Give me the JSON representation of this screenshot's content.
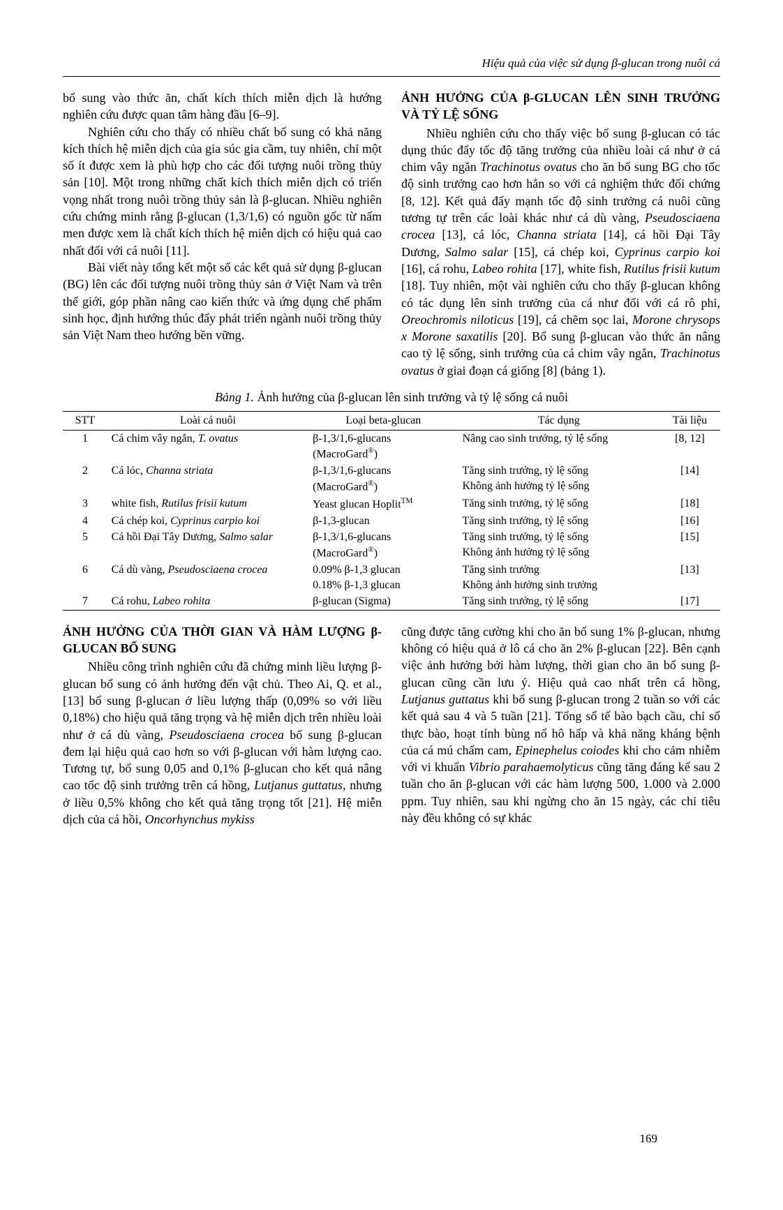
{
  "header": {
    "running_title": "Hiệu quả của việc sử dụng β-glucan trong nuôi cá"
  },
  "upper_left_col": {
    "p1": "bổ sung vào thức ăn, chất kích thích miễn dịch là hướng nghiên cứu được quan tâm hàng đầu [6–9].",
    "p2": "Nghiên cứu cho thấy có nhiều chất bổ sung có khả năng kích thích hệ miễn dịch của gia súc gia cầm, tuy nhiên, chỉ một số ít được xem là phù hợp cho các đối tượng nuôi trồng thủy sản [10]. Một trong những chất kích thích miễn dịch có triển vọng nhất trong nuôi trồng thủy sản là β-glucan. Nhiều nghiên cứu chứng minh rằng β-glucan (1,3/1,6) có nguồn gốc từ nấm men được xem là chất kích thích hệ miễn dịch có hiệu quả cao nhất đối với cá nuôi [11].",
    "p3": "Bài viết này tổng kết một số các kết quả sử dụng β-glucan (BG) lên các đối tượng nuôi trồng thủy sản ở Việt Nam và trên thế giới, góp phần nâng cao kiến thức và ứng dụng chế phẩm sinh học, định hướng thúc đẩy phát triển ngành nuôi trồng thủy sản Việt Nam theo hướng bền vững."
  },
  "upper_right_col": {
    "heading": "ẢNH HƯỞNG CỦA β-GLUCAN LÊN SINH TRƯỞNG VÀ TỶ LỆ SỐNG",
    "p1_a": "Nhiều nghiên cứu cho thấy việc bổ sung β-glucan có tác dụng thúc đẩy tốc độ tăng trưởng của nhiều loài cá như ở cá chim vây ngắn ",
    "p1_b": "Trachinotus ovatus",
    "p1_c": " cho ăn bổ sung BG cho tốc độ sinh trưởng cao hơn hẳn so với cá nghiệm thức đối chứng [8, 12]. Kết quả đẩy mạnh tốc độ sinh trưởng cá nuôi cũng tương tự trên các loài khác như cá dù vàng, ",
    "p1_d": "Pseudosciaena crocea",
    "p1_e": " [13], cá lóc, ",
    "p1_f": "Channa striata",
    "p1_g": " [14], cá hồi Đại Tây Dương, ",
    "p1_h": "Salmo salar",
    "p1_i": " [15], cá chép koi, ",
    "p1_j": "Cyprinus carpio koi",
    "p1_k": " [16], cá rohu, ",
    "p1_l": "Labeo rohita",
    "p1_m": " [17], white fish, ",
    "p1_n": "Rutilus frisii kutum",
    "p1_o": " [18]. Tuy nhiên, một vài nghiên cứu cho thấy β-glucan không có tác dụng lên sinh trưởng của cá như đối với cá rô phi, ",
    "p1_p": "Oreochromis niloticus",
    "p1_q": " [19], cá chẽm sọc lai, ",
    "p1_r": "Morone chrysops x Morone saxatilis",
    "p1_s": " [20]. Bổ sung β-glucan vào thức ăn nâng cao tỷ lệ sống, sinh trưởng của cá chim vây ngắn, ",
    "p1_t": "Trachinotus ovatus",
    "p1_u": " ở giai đoạn cá giống [8] (bảng 1)."
  },
  "table": {
    "caption_italic": "Bảng 1.",
    "caption_rest": " Ảnh hưởng của β-glucan lên sinh trưởng và tỷ lệ sống cá nuôi",
    "columns": [
      "STT",
      "Loài cá nuôi",
      "Loại beta-glucan",
      "Tác dụng",
      "Tài liệu"
    ],
    "rows": [
      {
        "stt": "1",
        "species_a": "Cá chim vây ngắn, ",
        "species_i": "T. ovatus",
        "glucan_a": "β-1,3/1,6-glucans",
        "glucan_b": "(MacroGard",
        "glucan_sup": "®",
        "glucan_c": ")",
        "effect_a": "Nâng cao sinh trưởng, tỷ lệ sống",
        "effect_b": "",
        "ref": "[8, 12]"
      },
      {
        "stt": "2",
        "species_a": "Cá lóc, ",
        "species_i": "Channa striata",
        "glucan_a": "β-1,3/1,6-glucans",
        "glucan_b": "(MacroGard",
        "glucan_sup": "®",
        "glucan_c": ")",
        "effect_a": "Tăng sinh trưởng, tỷ lệ sống",
        "effect_b": "Không ảnh hưởng tỷ lệ sống",
        "ref": "[14]"
      },
      {
        "stt": "3",
        "species_a": "white fish, ",
        "species_i": "Rutilus frisii kutum",
        "glucan_a": "Yeast glucan Hoplit",
        "glucan_sup": "TM",
        "glucan_b": "",
        "glucan_c": "",
        "effect_a": "Tăng sinh trưởng, tỷ lệ sống",
        "effect_b": "",
        "ref": "[18]"
      },
      {
        "stt": "4",
        "species_a": "Cá chép koi, ",
        "species_i": "Cyprinus carpio koi",
        "glucan_a": "β-1,3-glucan",
        "glucan_sup": "",
        "glucan_b": "",
        "glucan_c": "",
        "effect_a": "Tăng sinh trưởng, tỷ lệ sống",
        "effect_b": "",
        "ref": "[16]"
      },
      {
        "stt": "5",
        "species_a": "Cá hồi Đại Tây Dương, ",
        "species_i": "Salmo salar",
        "glucan_a": "β-1,3/1,6-glucans",
        "glucan_b": "(MacroGard",
        "glucan_sup": "®",
        "glucan_c": ")",
        "effect_a": "Tăng sinh trưởng, tỷ lệ sống",
        "effect_b": "Không ảnh hưởng tỷ lệ sống",
        "ref": "[15]"
      },
      {
        "stt": "6",
        "species_a": "Cá dù vàng, ",
        "species_i": "Pseudosciaena crocea",
        "glucan_a": "0.09% β-1,3 glucan",
        "glucan_b": "0.18% β-1,3 glucan",
        "glucan_sup": "",
        "glucan_c": "",
        "effect_a": "Tăng sinh trưởng",
        "effect_b": "Không ảnh hưởng sinh trưởng",
        "ref": "[13]"
      },
      {
        "stt": "7",
        "species_a": "Cá rohu, ",
        "species_i": "Labeo rohita",
        "glucan_a": "β-glucan (Sigma)",
        "glucan_sup": "",
        "glucan_b": "",
        "glucan_c": "",
        "effect_a": "Tăng sinh trưởng, tỷ lệ sống",
        "effect_b": "",
        "ref": "[17]"
      }
    ]
  },
  "lower_left_col": {
    "heading": "ẢNH HƯỞNG CỦA THỜI GIAN VÀ HÀM LƯỢNG β-GLUCAN BỔ SUNG",
    "p1_a": "Nhiều công trình nghiên cứu đã chứng minh liều lượng β-glucan bổ sung có ảnh hưởng đến vật chủ. Theo Ai, Q. et al., [13] bổ sung β-glucan ở liều lượng thấp (0,09% so với liều 0,18%) cho hiệu quả tăng trọng và hệ miễn dịch trên nhiều loài như ở cá dù vàng, ",
    "p1_b": "Pseudosciaena crocea",
    "p1_c": " bổ sung β-glucan đem lại hiệu quả cao hơn so với β-glucan với hàm lượng cao. Tương tự, bổ sung 0,05 and 0,1% β-glucan cho kết quả nâng cao tốc độ sinh trưởng trên cá hồng, ",
    "p1_d": "Lutjanus guttatus",
    "p1_e": ", nhưng ở liều 0,5% không cho kết quả tăng trọng tốt [21]. Hệ miễn dịch của cá hồi, ",
    "p1_f": "Oncorhynchus mykiss"
  },
  "lower_right_col": {
    "p1_a": "cũng được tăng cường khi cho ăn bổ sung 1% β-glucan, nhưng không có hiệu quả ở lô cá cho ăn 2% β-glucan [22]. Bên cạnh việc ảnh hưởng bởi hàm lượng, thời gian cho ăn bổ sung β-glucan cũng cần lưu ý. Hiệu quả cao nhất trên cá hồng, ",
    "p1_b": "Lutjanus guttatus",
    "p1_c": " khi bổ sung β-glucan trong 2 tuần so với các kết quả sau 4 và 5 tuần [21]. Tổng số tế bào bạch cầu, chỉ số thực bào, hoạt tính bùng nổ hô hấp và khả năng kháng bệnh của cá mú chấm cam, ",
    "p1_d": "Epinephelus coiodes",
    "p1_e": " khi cho cảm nhiễm với vi khuẩn ",
    "p1_f": "Vibrio parahaemolyticus",
    "p1_g": " cũng tăng đáng kể sau 2 tuần cho ăn β-glucan với các hàm lượng 500, 1.000 và 2.000 ppm. Tuy nhiên, sau khi ngừng cho ăn 15 ngày, các chỉ tiêu này đều không có sự khác"
  },
  "page_number": "169"
}
